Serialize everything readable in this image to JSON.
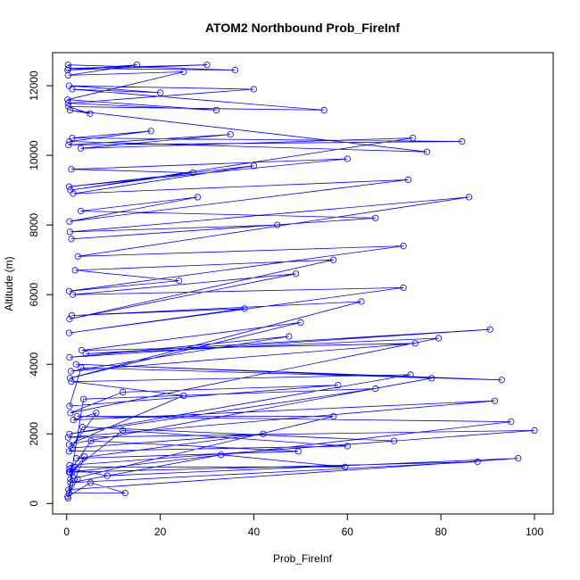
{
  "chart_data": {
    "type": "line",
    "title": "ATOM2 Northbound Prob_FireInf",
    "xlabel": "Prob_FireInf",
    "ylabel": "Altitude (m)",
    "xlim": [
      -3,
      104
    ],
    "ylim": [
      -300,
      12950
    ],
    "xticks": [
      0,
      20,
      40,
      60,
      80,
      100
    ],
    "yticks": [
      0,
      2000,
      4000,
      6000,
      8000,
      10000,
      12000
    ],
    "grid": false,
    "markers": "open-circle",
    "colors": {
      "series": "#0000ff",
      "axis": "#000000"
    },
    "series": [
      {
        "x": [
          0.3,
          1.2,
          3.8,
          0.5,
          12.5,
          5.1,
          0.2,
          2.3,
          0.6,
          8.7,
          96.5,
          0.4,
          1.6,
          59.5,
          33.0,
          0.8,
          87.8,
          0.5,
          5.2,
          49.5,
          2.1,
          42.0,
          1.2,
          3.4,
          70.0,
          0.6,
          100.0,
          0.3,
          91.5,
          1.4,
          6.3,
          0.5,
          60.0,
          12.0,
          0.7,
          95.0,
          2.2,
          57.0,
          0.8,
          3.6,
          66.0,
          0.6,
          73.5,
          1.0,
          25.0,
          0.5,
          78.0,
          2.0,
          93.0,
          3.1,
          0.6,
          58.0,
          12.0,
          0.8,
          79.5,
          4.1,
          90.5,
          0.6,
          47.5,
          0.9,
          74.5,
          3.2,
          50.0,
          0.7,
          63.0,
          1.1,
          38.0,
          0.5,
          72.0,
          1.3,
          49.0,
          0.6,
          57.0,
          1.8,
          24.0,
          0.5,
          72.0,
          2.4,
          86.0,
          0.7,
          45.0,
          1.0,
          66.0,
          3.0,
          28.0,
          0.6,
          73.0,
          1.4,
          40.0,
          0.5,
          60.0,
          1.0,
          27.0,
          0.8,
          74.0,
          3.0,
          35.0,
          0.4,
          84.5,
          1.2,
          18.0,
          0.6,
          77.0,
          0.7,
          5.0,
          0.4,
          55.0,
          1.2,
          20.0,
          0.5,
          40.0,
          0.3,
          32.0,
          0.2,
          25.0,
          0.3,
          15.0,
          0.2,
          30.0,
          0.4,
          36.0,
          0.3
        ],
        "y": [
          150,
          900,
          1350,
          300,
          300,
          600,
          200,
          700,
          1000,
          800,
          1300,
          400,
          1050,
          1050,
          1400,
          600,
          1200,
          900,
          1800,
          1500,
          1300,
          2000,
          1600,
          2200,
          1800,
          1100,
          2100,
          1900,
          2950,
          2400,
          2600,
          1500,
          1650,
          2100,
          900,
          2350,
          2500,
          2500,
          700,
          3000,
          3300,
          2000,
          3700,
          3500,
          3100,
          1700,
          3600,
          4000,
          3550,
          3900,
          2800,
          3400,
          3200,
          2600,
          4750,
          4300,
          5000,
          4200,
          4800,
          3800,
          4600,
          4400,
          5200,
          3600,
          5800,
          5400,
          5600,
          4900,
          6200,
          6000,
          6600,
          5300,
          7000,
          6700,
          6400,
          6100,
          7400,
          7100,
          8800,
          7800,
          8000,
          7600,
          8200,
          8400,
          8800,
          8100,
          9300,
          8900,
          9700,
          9100,
          9900,
          9600,
          9500,
          9000,
          10500,
          10200,
          10600,
          10300,
          10400,
          10500,
          10700,
          10400,
          10100,
          11300,
          11200,
          11400,
          11300,
          11900,
          11800,
          12000,
          11900,
          11500,
          11300,
          11600,
          12400,
          12300,
          12600,
          12450,
          12600,
          12500,
          12450,
          12600
        ]
      }
    ]
  }
}
